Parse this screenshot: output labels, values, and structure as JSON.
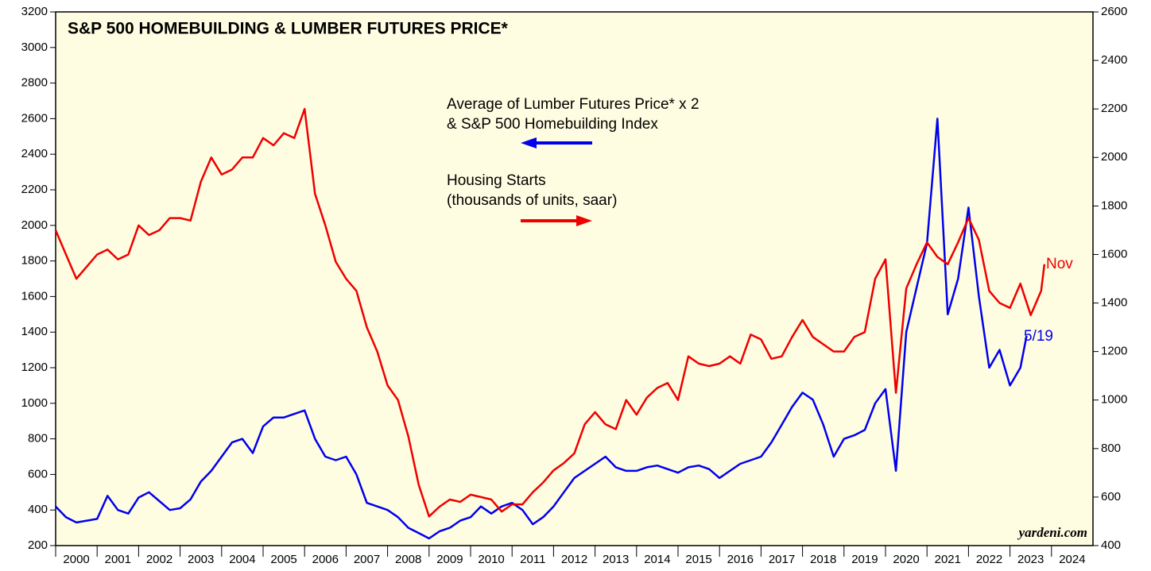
{
  "chart_data": {
    "type": "line",
    "title": "S&P 500 HOMEBUILDING & LUMBER FUTURES PRICE*",
    "annotations": [
      "Average of Lumber Futures Price* x 2",
      "& S&P 500 Homebuilding Index",
      "Housing Starts",
      "(thousands of units, saar)",
      "Nov",
      "5/19",
      "yardeni.com"
    ],
    "xlim": [
      2000,
      2025
    ],
    "xticks": [
      2000,
      2001,
      2002,
      2003,
      2004,
      2005,
      2006,
      2007,
      2008,
      2009,
      2010,
      2011,
      2012,
      2013,
      2014,
      2015,
      2016,
      2017,
      2018,
      2019,
      2020,
      2021,
      2022,
      2023,
      2024
    ],
    "ylim": [
      200,
      3200
    ],
    "yticks": [
      200,
      400,
      600,
      800,
      1000,
      1200,
      1400,
      1600,
      1800,
      2000,
      2200,
      2400,
      2600,
      2800,
      3000,
      3200
    ],
    "y2lim": [
      400,
      2600
    ],
    "y2ticks": [
      400,
      600,
      800,
      1000,
      1200,
      1400,
      1600,
      1800,
      2000,
      2200,
      2400,
      2600
    ],
    "series": [
      {
        "color": "#0000ee",
        "axis": "y",
        "x": [
          2000,
          2000.25,
          2000.5,
          2000.75,
          2001,
          2001.25,
          2001.5,
          2001.75,
          2002,
          2002.25,
          2002.5,
          2002.75,
          2003,
          2003.25,
          2003.5,
          2003.75,
          2004,
          2004.25,
          2004.5,
          2004.75,
          2005,
          2005.25,
          2005.5,
          2005.75,
          2006,
          2006.25,
          2006.5,
          2006.75,
          2007,
          2007.25,
          2007.5,
          2007.75,
          2008,
          2008.25,
          2008.5,
          2008.75,
          2009,
          2009.25,
          2009.5,
          2009.75,
          2010,
          2010.25,
          2010.5,
          2010.75,
          2011,
          2011.25,
          2011.5,
          2011.75,
          2012,
          2012.25,
          2012.5,
          2012.75,
          2013,
          2013.25,
          2013.5,
          2013.75,
          2014,
          2014.25,
          2014.5,
          2014.75,
          2015,
          2015.25,
          2015.5,
          2015.75,
          2016,
          2016.25,
          2016.5,
          2016.75,
          2017,
          2017.25,
          2017.5,
          2017.75,
          2018,
          2018.25,
          2018.5,
          2018.75,
          2019,
          2019.25,
          2019.5,
          2019.75,
          2020,
          2020.25,
          2020.5,
          2020.75,
          2021,
          2021.25,
          2021.5,
          2021.75,
          2022,
          2022.25,
          2022.5,
          2022.75,
          2023,
          2023.25,
          2023.4
        ],
        "values": [
          420,
          360,
          330,
          340,
          350,
          480,
          400,
          380,
          470,
          500,
          450,
          400,
          410,
          460,
          560,
          620,
          700,
          780,
          800,
          720,
          870,
          920,
          920,
          940,
          960,
          800,
          700,
          680,
          700,
          600,
          440,
          420,
          400,
          360,
          300,
          270,
          240,
          280,
          300,
          340,
          360,
          420,
          380,
          420,
          440,
          400,
          320,
          360,
          420,
          500,
          580,
          620,
          660,
          700,
          640,
          620,
          620,
          640,
          650,
          630,
          610,
          640,
          650,
          630,
          580,
          620,
          660,
          680,
          700,
          780,
          880,
          980,
          1060,
          1020,
          880,
          700,
          800,
          820,
          850,
          1000,
          1080,
          620,
          1400,
          1650,
          1900,
          2600,
          1500,
          1700,
          2100,
          1600,
          1200,
          1300,
          1100,
          1200,
          1380
        ]
      },
      {
        "color": "#ee0000",
        "axis": "y2",
        "x": [
          2000,
          2000.25,
          2000.5,
          2000.75,
          2001,
          2001.25,
          2001.5,
          2001.75,
          2002,
          2002.25,
          2002.5,
          2002.75,
          2003,
          2003.25,
          2003.5,
          2003.75,
          2004,
          2004.25,
          2004.5,
          2004.75,
          2005,
          2005.25,
          2005.5,
          2005.75,
          2006,
          2006.25,
          2006.5,
          2006.75,
          2007,
          2007.25,
          2007.5,
          2007.75,
          2008,
          2008.25,
          2008.5,
          2008.75,
          2009,
          2009.25,
          2009.5,
          2009.75,
          2010,
          2010.25,
          2010.5,
          2010.75,
          2011,
          2011.25,
          2011.5,
          2011.75,
          2012,
          2012.25,
          2012.5,
          2012.75,
          2013,
          2013.25,
          2013.5,
          2013.75,
          2014,
          2014.25,
          2014.5,
          2014.75,
          2015,
          2015.25,
          2015.5,
          2015.75,
          2016,
          2016.25,
          2016.5,
          2016.75,
          2017,
          2017.25,
          2017.5,
          2017.75,
          2018,
          2018.25,
          2018.5,
          2018.75,
          2019,
          2019.25,
          2019.5,
          2019.75,
          2020,
          2020.25,
          2020.5,
          2020.75,
          2021,
          2021.25,
          2021.5,
          2021.75,
          2022,
          2022.25,
          2022.5,
          2022.75,
          2023,
          2023.25,
          2023.5,
          2023.75,
          2023.83
        ],
        "values": [
          1700,
          1600,
          1500,
          1550,
          1600,
          1620,
          1580,
          1600,
          1720,
          1680,
          1700,
          1750,
          1750,
          1740,
          1900,
          2000,
          1930,
          1950,
          2000,
          2000,
          2080,
          2050,
          2100,
          2080,
          2200,
          1850,
          1720,
          1570,
          1500,
          1450,
          1300,
          1200,
          1060,
          1000,
          850,
          650,
          520,
          560,
          590,
          580,
          610,
          600,
          590,
          540,
          570,
          570,
          620,
          660,
          710,
          740,
          780,
          900,
          950,
          900,
          880,
          1000,
          940,
          1010,
          1050,
          1070,
          1000,
          1180,
          1150,
          1140,
          1150,
          1180,
          1150,
          1270,
          1250,
          1170,
          1180,
          1260,
          1330,
          1260,
          1230,
          1200,
          1200,
          1260,
          1280,
          1500,
          1580,
          1030,
          1460,
          1560,
          1650,
          1590,
          1560,
          1650,
          1750,
          1660,
          1450,
          1400,
          1380,
          1480,
          1350,
          1450,
          1560
        ]
      }
    ]
  }
}
